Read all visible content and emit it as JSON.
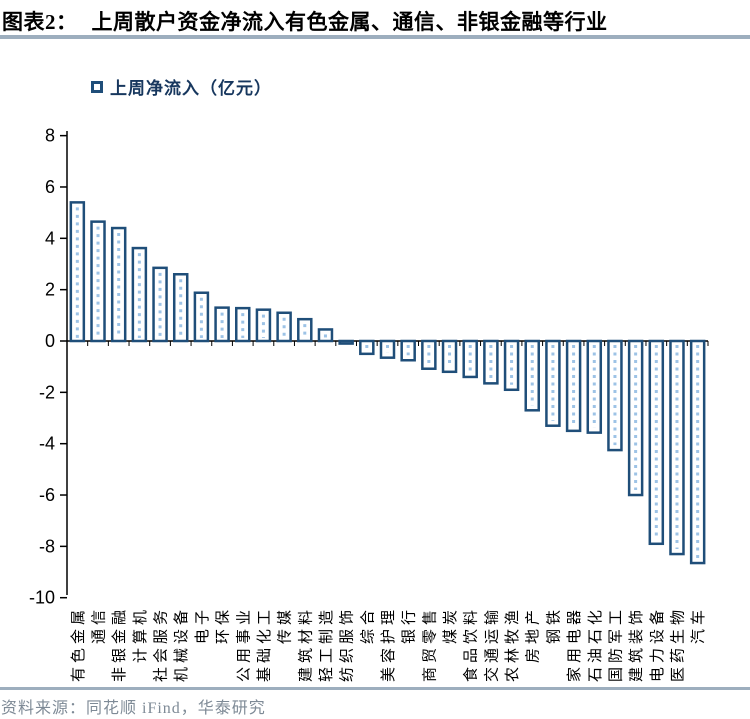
{
  "header": {
    "title_prefix": "图表2：",
    "title_text": "上周散户资金净流入有色金属、通信、非银金融等行业"
  },
  "legend": {
    "label": "上周净流入（亿元）"
  },
  "footer": {
    "source": "资料来源：同花顺 iFind，华泰研究"
  },
  "colors": {
    "bar_border": "#1F4E79",
    "bar_fill": "#FFFFFF",
    "bar_dot": "#9DC3E6",
    "axis": "#000000",
    "tick_label": "#000000",
    "category_label": "#000000",
    "divider": "#9DAEBE",
    "legend_text": "#17375E",
    "footer_text": "#7E8A96"
  },
  "chart_data": {
    "type": "bar",
    "title": "上周净流入（亿元）",
    "series_name": "上周净流入（亿元）",
    "unit": "亿元",
    "categories": [
      "有色金属",
      "通信",
      "非银金融",
      "计算机",
      "社会服务",
      "机械设备",
      "电子",
      "环保",
      "公用事业",
      "基础化工",
      "传媒",
      "建筑材料",
      "轻工制造",
      "纺织服饰",
      "综合",
      "美容护理",
      "银行",
      "商贸零售",
      "煤炭",
      "食品饮料",
      "交通运输",
      "农林牧渔",
      "房地产",
      "钢铁",
      "家用电器",
      "石油石化",
      "国防军工",
      "建筑装饰",
      "电力设备",
      "医药生物",
      "汽车"
    ],
    "values": [
      5.4,
      4.65,
      4.4,
      3.62,
      2.85,
      2.6,
      1.88,
      1.3,
      1.28,
      1.22,
      1.1,
      0.85,
      0.45,
      -0.1,
      -0.5,
      -0.65,
      -0.75,
      -1.08,
      -1.2,
      -1.4,
      -1.65,
      -1.9,
      -2.7,
      -3.3,
      -3.5,
      -3.57,
      -4.25,
      -6.0,
      -7.9,
      -8.3,
      -8.65
    ],
    "xlabel": "",
    "ylabel": "",
    "ylim": [
      -10,
      8
    ],
    "yticks": [
      8,
      6,
      4,
      2,
      0,
      -2,
      -4,
      -6,
      -8,
      -10
    ],
    "grid": false,
    "legend_position": "top-left"
  }
}
